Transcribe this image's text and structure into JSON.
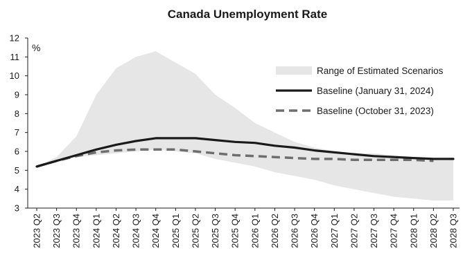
{
  "chart_data": {
    "type": "area",
    "title": "Canada Unemployment Rate",
    "unit_label": "%",
    "xlabel": "",
    "ylabel": "",
    "ylim": [
      3,
      12
    ],
    "yticks": [
      3,
      4,
      5,
      6,
      7,
      8,
      9,
      10,
      11,
      12
    ],
    "grid": false,
    "legend_position": "top-right",
    "categories": [
      "2023Q2",
      "2023Q3",
      "2023Q4",
      "2024Q1",
      "2024Q2",
      "2024Q3",
      "2024Q4",
      "2025Q1",
      "2025Q2",
      "2025Q3",
      "2025Q4",
      "2026Q1",
      "2026Q2",
      "2026Q3",
      "2026Q4",
      "2027Q1",
      "2027Q2",
      "2027Q3",
      "2027Q4",
      "2028Q1",
      "2028Q2",
      "2028Q3"
    ],
    "category_labels": [
      "2023 Q2",
      "2023 Q3",
      "2023 Q4",
      "2024 Q1",
      "2024 Q2",
      "2024 Q3",
      "2024 Q4",
      "2025 Q1",
      "2025 Q2",
      "2025 Q3",
      "2025 Q4",
      "2026 Q1",
      "2026 Q2",
      "2026 Q3",
      "2026 Q4",
      "2027 Q1",
      "2027 Q2",
      "2027 Q3",
      "2027 Q4",
      "2028 Q1",
      "2028 Q2",
      "2028 Q3"
    ],
    "range": {
      "name": "Range of Estimated Scenarios",
      "color": "#e6e6e6",
      "upper": [
        5.2,
        5.7,
        6.8,
        9.0,
        10.4,
        11.0,
        11.3,
        10.7,
        10.1,
        9.0,
        8.3,
        7.5,
        7.0,
        6.5,
        6.2,
        6.0,
        5.9,
        5.9,
        5.8,
        5.7,
        5.6,
        5.6
      ],
      "lower": [
        5.2,
        5.5,
        5.7,
        5.8,
        5.9,
        6.0,
        6.1,
        6.0,
        5.9,
        5.6,
        5.4,
        5.2,
        4.9,
        4.7,
        4.5,
        4.2,
        4.0,
        3.8,
        3.6,
        3.5,
        3.4,
        3.4
      ]
    },
    "series": [
      {
        "name": "Baseline (January 31, 2024)",
        "color": "#1a1a1a",
        "style": "solid",
        "values": [
          5.2,
          5.5,
          5.8,
          6.1,
          6.35,
          6.55,
          6.7,
          6.7,
          6.7,
          6.6,
          6.5,
          6.45,
          6.3,
          6.2,
          6.05,
          5.95,
          5.85,
          5.75,
          5.7,
          5.65,
          5.6,
          5.6
        ]
      },
      {
        "name": "Baseline (October 31, 2023)",
        "color": "#6e6e6e",
        "style": "dashed",
        "values": [
          5.2,
          5.5,
          5.75,
          5.95,
          6.05,
          6.1,
          6.1,
          6.1,
          6.0,
          5.9,
          5.8,
          5.75,
          5.7,
          5.65,
          5.6,
          5.6,
          5.55,
          5.55,
          5.55,
          5.55,
          5.5,
          null
        ]
      }
    ]
  }
}
